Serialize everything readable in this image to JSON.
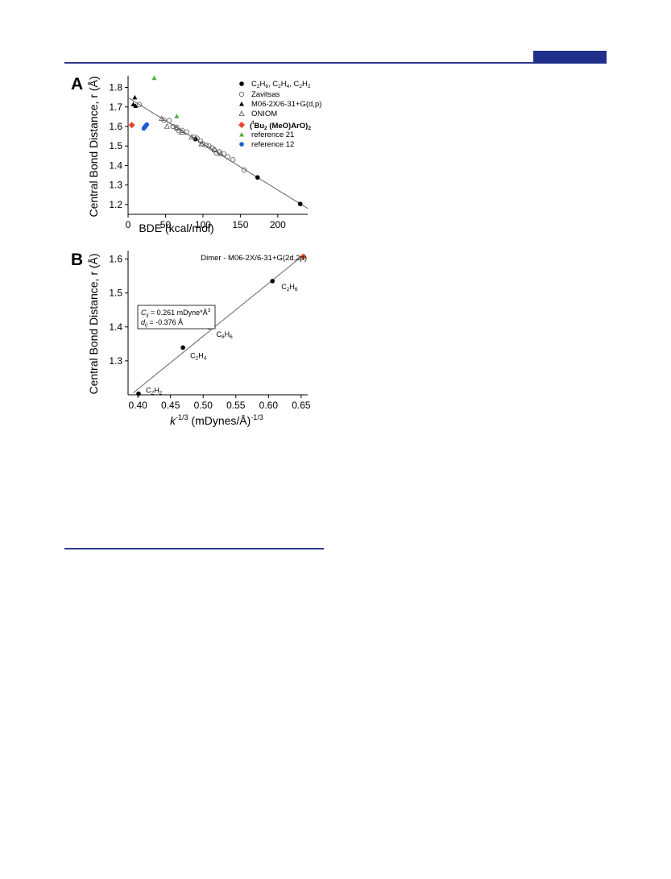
{
  "chart_data": [
    {
      "type": "scatter",
      "panel_label": "A",
      "title": "",
      "xlabel": "BDE (kcal/mol)",
      "ylabel": "Central Bond Distance, r (Å)",
      "xlim": [
        0,
        240
      ],
      "ylim": [
        1.15,
        1.86
      ],
      "xticks": [
        "0",
        "50",
        "100",
        "150",
        "200"
      ],
      "xtick_values": [
        0,
        50,
        100,
        150,
        200
      ],
      "yticks": [
        "1.2",
        "1.3",
        "1.4",
        "1.5",
        "1.6",
        "1.7",
        "1.8"
      ],
      "ytick_values": [
        1.2,
        1.3,
        1.4,
        1.5,
        1.6,
        1.7,
        1.8
      ],
      "grid": false,
      "legend_position": "top-right",
      "fit_line": {
        "x": [
          0,
          240
        ],
        "y": [
          1.748,
          1.18
        ]
      },
      "series": [
        {
          "name": "C2H6, C2H4, C2H2",
          "marker": "filled-circle",
          "color": "#000000",
          "x": [
            90,
            173,
            230
          ],
          "y": [
            1.535,
            1.339,
            1.203
          ]
        },
        {
          "name": "Zavitsas",
          "marker": "open-circle",
          "color": "#555555",
          "x": [
            15,
            48,
            55,
            60,
            65,
            68,
            72,
            78,
            88,
            92,
            97,
            100,
            104,
            108,
            112,
            115,
            118,
            122,
            128,
            133,
            140,
            155
          ],
          "y": [
            1.712,
            1.632,
            1.63,
            1.6,
            1.596,
            1.578,
            1.58,
            1.572,
            1.545,
            1.54,
            1.525,
            1.51,
            1.505,
            1.5,
            1.49,
            1.48,
            1.465,
            1.47,
            1.46,
            1.445,
            1.43,
            1.378
          ]
        },
        {
          "name": "M06-2X/6-31+G(d,p)",
          "marker": "filled-triangle",
          "color": "#000000",
          "x": [
            7,
            9,
            10
          ],
          "y": [
            1.713,
            1.748,
            1.705
          ]
        },
        {
          "name": "ONIOM",
          "marker": "open-triangle",
          "color": "#555555",
          "x": [
            45,
            52,
            65,
            72,
            85,
            98,
            116,
            124
          ],
          "y": [
            1.64,
            1.6,
            1.59,
            1.57,
            1.545,
            1.51,
            1.48,
            1.46
          ]
        },
        {
          "name": "(tBu2(MeO)ArO)2",
          "marker": "diamond",
          "color": "#e8412c",
          "x": [
            5
          ],
          "y": [
            1.607
          ]
        },
        {
          "name": "reference 21",
          "marker": "filled-triangle",
          "color": "#4caf3f",
          "x": [
            35,
            65
          ],
          "y": [
            1.848,
            1.652
          ]
        },
        {
          "name": "reference 12",
          "marker": "filled-circle",
          "color": "#1e5bd6",
          "x": [
            21,
            22,
            23,
            24,
            25
          ],
          "y": [
            1.59,
            1.595,
            1.6,
            1.605,
            1.61
          ]
        }
      ]
    },
    {
      "type": "scatter",
      "panel_label": "B",
      "title": "Dimer - M06-2X/6-31+G(2d,2p)",
      "xlabel": "k^-1/3 (mDynes/Å)^-1/3",
      "ylabel": "Central Bond Distance, r (Å)",
      "xlim": [
        0.385,
        0.66
      ],
      "ylim": [
        1.2,
        1.625
      ],
      "xticks": [
        "0.40",
        "0.45",
        "0.50",
        "0.55",
        "0.60",
        "0.65"
      ],
      "xtick_values": [
        0.4,
        0.45,
        0.5,
        0.55,
        0.6,
        0.65
      ],
      "yticks": [
        "1.3",
        "1.4",
        "1.5",
        "1.6"
      ],
      "ytick_values": [
        1.3,
        1.4,
        1.5,
        1.6
      ],
      "grid": false,
      "fit_line": {
        "x": [
          0.393,
          0.655
        ],
        "y": [
          1.206,
          1.614
        ]
      },
      "fit_params": {
        "cij": "Cij = 0.261 mDyne*Å3",
        "dij": "dij = -0.376 Å"
      },
      "series": [
        {
          "name": "C2H2",
          "marker": "filled-circle",
          "color": "#000000",
          "x": [
            0.401
          ],
          "y": [
            1.203
          ]
        },
        {
          "name": "C2H4",
          "marker": "filled-circle",
          "color": "#000000",
          "x": [
            0.469
          ],
          "y": [
            1.339
          ]
        },
        {
          "name": "C6H6",
          "marker": "filled-circle",
          "color": "#000000",
          "x": [
            0.509
          ],
          "y": [
            1.399
          ]
        },
        {
          "name": "C2H6",
          "marker": "filled-circle",
          "color": "#000000",
          "x": [
            0.606
          ],
          "y": [
            1.535
          ]
        },
        {
          "name": "Dimer",
          "marker": "diamond",
          "color": "#e8412c",
          "x": [
            0.653
          ],
          "y": [
            1.607
          ]
        }
      ],
      "point_labels": [
        {
          "base": "C",
          "sub1": "2",
          "mid": "H",
          "sub2": "2",
          "x": 0.401,
          "y": 1.203
        },
        {
          "base": "C",
          "sub1": "2",
          "mid": "H",
          "sub2": "4",
          "x": 0.469,
          "y": 1.339
        },
        {
          "base": "C",
          "sub1": "6",
          "mid": "H",
          "sub2": "6",
          "x": 0.509,
          "y": 1.399
        },
        {
          "base": "C",
          "sub1": "2",
          "mid": "H",
          "sub2": "6",
          "x": 0.606,
          "y": 1.535
        }
      ]
    }
  ],
  "legendA": {
    "l1": {
      "a": "C",
      "s1": "2",
      "b": "H",
      "s2": "6",
      "c": ", C",
      "s3": "2",
      "d": "H",
      "s4": "4",
      "e": ", C",
      "s5": "2",
      "f": "H",
      "s6": "2"
    },
    "l2": "Zavitsas",
    "l3": "M06-2X/6-31+G(d,p)",
    "l4": "ONIOM",
    "l5": {
      "open": "(",
      "sup": "t",
      "bu": "Bu",
      "sub": "2",
      "mid": " (MeO)ArO)",
      "sub2": "2"
    },
    "l6": "reference 21",
    "l7": "reference 12"
  },
  "panelB_text": {
    "cij": {
      "c": "C",
      "sub": "ij",
      "rest": " = 0.261 mDyne*Å",
      "sup": "3"
    },
    "dij": {
      "d": "d",
      "sub": "ij",
      "rest": " = -0.376 Å"
    },
    "xlabel": {
      "k": "k",
      "sup": "-1/3",
      "mid": " (mDynes/Å)",
      "sup2": "-1/3"
    }
  }
}
